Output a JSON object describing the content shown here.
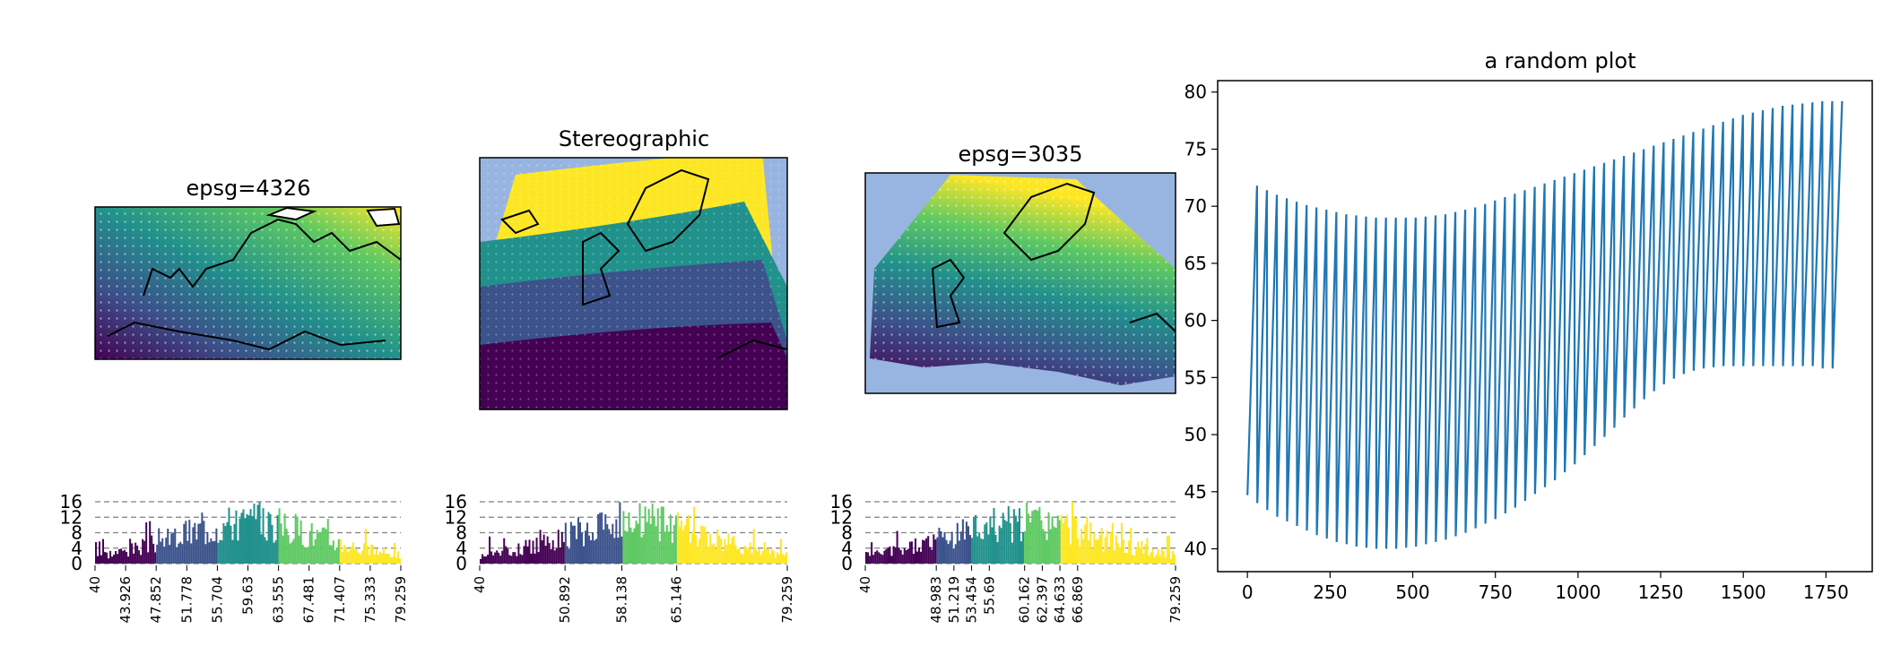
{
  "colors": {
    "ocean": "#98b4e0",
    "land": "#ffffff",
    "coast": "#000000",
    "line": "#1f77b4",
    "viridis": [
      "#440154",
      "#3b528b",
      "#21918c",
      "#5ec962",
      "#fde725"
    ]
  },
  "chart_data": [
    {
      "type": "scatter",
      "title": "epsg=4326",
      "series": [
        {
          "values_range": [
            40,
            79.259
          ]
        }
      ]
    },
    {
      "type": "heatmap",
      "title": "Stereographic",
      "classes": 5
    },
    {
      "type": "scatter",
      "title": "epsg=3035",
      "series": [
        {
          "values_range": [
            40,
            79.259
          ]
        }
      ]
    },
    {
      "type": "bar",
      "subtype": "histogram",
      "yticks": [
        "0",
        "4",
        "8",
        "12",
        "16"
      ],
      "xticks": [
        "40",
        "43.926",
        "47.852",
        "51.778",
        "55.704",
        "59.63",
        "63.555",
        "67.481",
        "71.407",
        "75.333",
        "79.259"
      ]
    },
    {
      "type": "bar",
      "subtype": "histogram",
      "yticks": [
        "0",
        "4",
        "8",
        "12",
        "16"
      ],
      "xticks": [
        "40",
        "50.892",
        "58.138",
        "65.146",
        "79.259"
      ]
    },
    {
      "type": "bar",
      "subtype": "histogram",
      "yticks": [
        "0",
        "4",
        "8",
        "12",
        "16"
      ],
      "xticks": [
        "40",
        "48.983",
        "51.219",
        "53.454",
        "55.69",
        "60.162",
        "62.397",
        "64.633",
        "66.869",
        "79.259"
      ]
    },
    {
      "type": "line",
      "title": "a random plot",
      "xticks": [
        "0",
        "250",
        "500",
        "750",
        "1000",
        "1250",
        "1500",
        "1750"
      ],
      "yticks": [
        "40",
        "45",
        "50",
        "55",
        "60",
        "65",
        "70",
        "75",
        "80"
      ],
      "xlim": [
        -90,
        1890
      ],
      "ylim": [
        38,
        81
      ],
      "series": [
        {
          "pattern": "sawtooth",
          "cycles": 60,
          "period": 30,
          "low": [
            44.7,
            44.0,
            43.4,
            42.8,
            42.4,
            42.0,
            41.6,
            41.2,
            40.9,
            40.6,
            40.4,
            40.2,
            40.1,
            40.0,
            40.0,
            40.0,
            40.1,
            40.2,
            40.4,
            40.6,
            40.8,
            41.1,
            41.4,
            41.8,
            42.2,
            42.6,
            43.1,
            43.6,
            44.2,
            44.8,
            45.4,
            46.0,
            46.7,
            47.4,
            48.2,
            49.0,
            49.8,
            50.6,
            51.5,
            52.3,
            53.1,
            53.8,
            54.4,
            54.9,
            55.3,
            55.6,
            55.8,
            55.9,
            56.0,
            56.0,
            56.0,
            56.0,
            56.0,
            56.0,
            56.0,
            56.0,
            56.0,
            56.0,
            55.8,
            55.8
          ],
          "high": [
            71.8,
            71.4,
            71.0,
            70.7,
            70.4,
            70.1,
            69.9,
            69.7,
            69.5,
            69.3,
            69.2,
            69.1,
            69.0,
            69.0,
            69.0,
            69.0,
            69.0,
            69.1,
            69.2,
            69.3,
            69.5,
            69.7,
            69.9,
            70.2,
            70.5,
            70.8,
            71.1,
            71.4,
            71.7,
            72.0,
            72.3,
            72.6,
            72.9,
            73.2,
            73.5,
            73.8,
            74.1,
            74.4,
            74.7,
            75.0,
            75.3,
            75.6,
            75.9,
            76.2,
            76.5,
            76.8,
            77.1,
            77.4,
            77.7,
            78.0,
            78.2,
            78.4,
            78.6,
            78.8,
            78.9,
            79.0,
            79.1,
            79.2,
            79.2,
            79.2
          ]
        }
      ]
    }
  ]
}
